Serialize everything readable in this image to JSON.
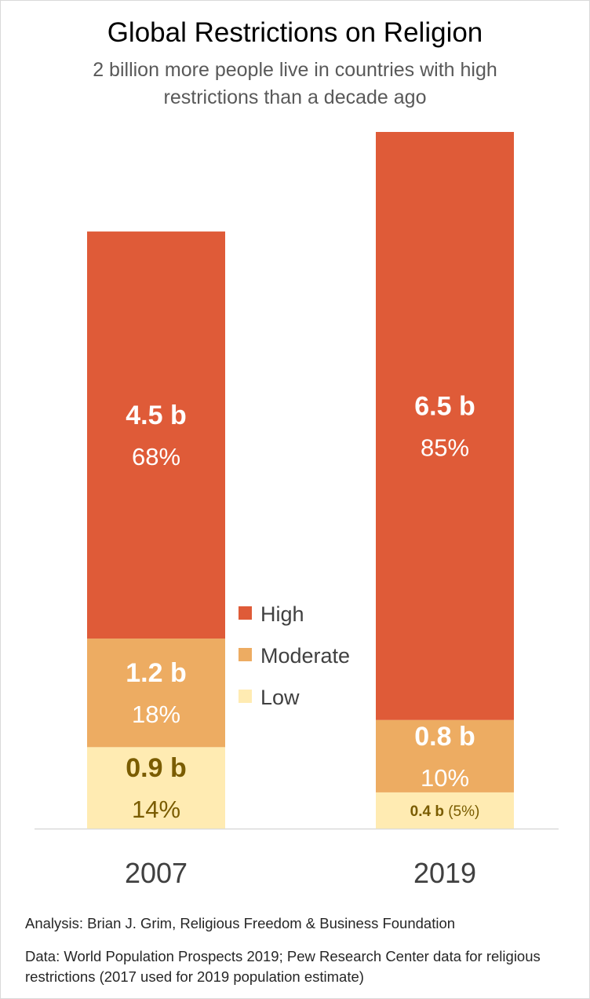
{
  "title": "Global Restrictions on Religion",
  "subtitle": "2 billion more people live in countries with high restrictions than a decade ago",
  "chart_data": {
    "type": "bar",
    "stacked": true,
    "categories": [
      "2007",
      "2019"
    ],
    "series": [
      {
        "name": "Low",
        "color": "#FFEBB2",
        "values": [
          0.9,
          0.4
        ],
        "percents": [
          "14%",
          "5%"
        ],
        "labels": [
          {
            "value": "0.9 b",
            "percent": "14%"
          },
          {
            "value": "0.4 b",
            "percent": "(5%)"
          }
        ]
      },
      {
        "name": "Moderate",
        "color": "#EDAC62",
        "values": [
          1.2,
          0.8
        ],
        "percents": [
          "18%",
          "10%"
        ],
        "labels": [
          {
            "value": "1.2 b",
            "percent": "18%"
          },
          {
            "value": "0.8 b",
            "percent": "10%"
          }
        ]
      },
      {
        "name": "High",
        "color": "#DF5B38",
        "values": [
          4.5,
          6.5
        ],
        "percents": [
          "68%",
          "85%"
        ],
        "labels": [
          {
            "value": "4.5 b",
            "percent": "68%"
          },
          {
            "value": "6.5 b",
            "percent": "85%"
          }
        ]
      }
    ],
    "ylim": [
      0,
      8.0
    ],
    "legend": [
      "High",
      "Moderate",
      "Low"
    ],
    "legend_position": "center",
    "grid": false
  },
  "footer": {
    "analysis": "Analysis: Brian J. Grim, Religious Freedom & Business Foundation",
    "data": "Data: World Population Prospects 2019; Pew Research Center data for religious restrictions (2017 used for 2019 population estimate)"
  }
}
